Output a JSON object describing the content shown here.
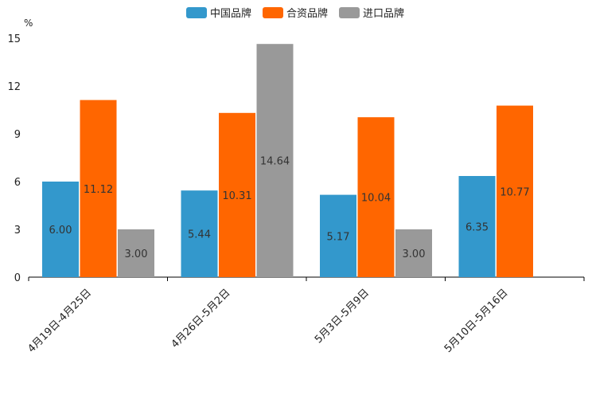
{
  "chart_data": {
    "type": "bar",
    "title": "",
    "unit": "%",
    "xlabel": "",
    "ylabel": "",
    "ylim": [
      0,
      15
    ],
    "yticks": [
      0,
      3,
      6,
      9,
      12,
      15
    ],
    "grid": false,
    "legend_position": "top-center",
    "categories": [
      "4月19日-4月25日",
      "4月26日-5月2日",
      "5月3日-5月9日",
      "5月10日-5月16日"
    ],
    "series": [
      {
        "name": "中国品牌",
        "color": "#3398cc",
        "values": [
          6.0,
          5.44,
          5.17,
          6.35
        ],
        "labels": [
          "6.00",
          "5.44",
          "5.17",
          "6.35"
        ]
      },
      {
        "name": "合资品牌",
        "color": "#ff6600",
        "values": [
          11.12,
          10.31,
          10.04,
          10.77
        ],
        "labels": [
          "11.12",
          "10.31",
          "10.04",
          "10.77"
        ]
      },
      {
        "name": "进口品牌",
        "color": "#999999",
        "values": [
          3.0,
          14.64,
          3.0,
          null
        ],
        "labels": [
          "3.00",
          "14.64",
          "3.00",
          null
        ]
      }
    ]
  }
}
